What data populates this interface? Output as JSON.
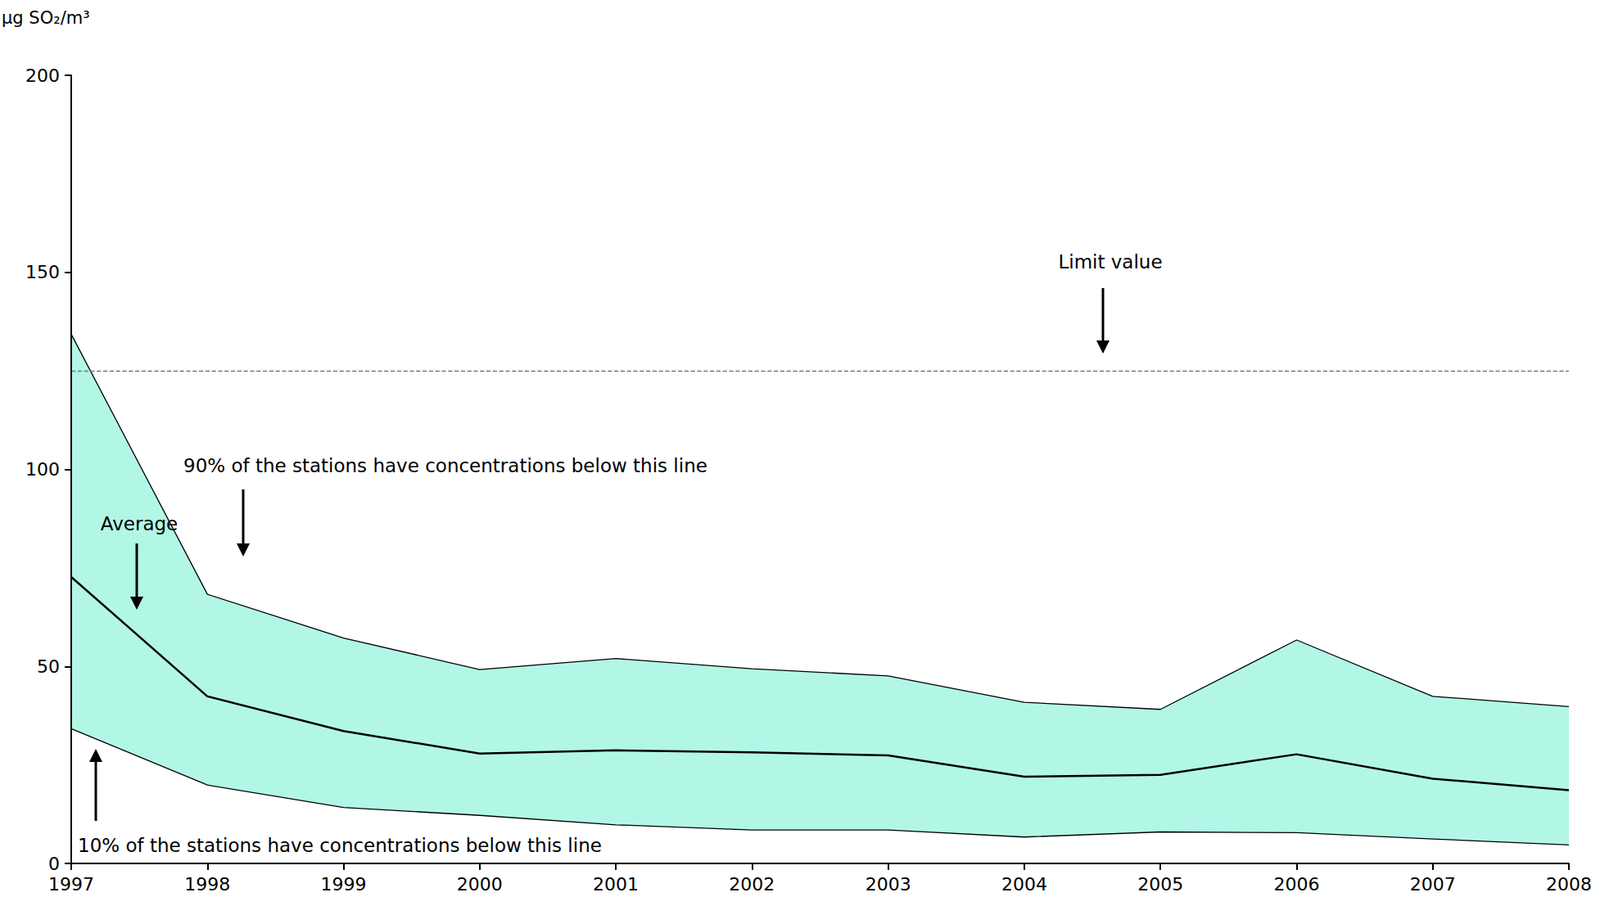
{
  "chart_data": {
    "type": "line",
    "y_label": "µg SO₂/m³",
    "categories": [
      "1997",
      "1998",
      "1999",
      "2000",
      "2001",
      "2002",
      "2003",
      "2004",
      "2005",
      "2006",
      "2007",
      "2008"
    ],
    "series": [
      {
        "name": "90% of the stations have concentrations below this line",
        "values": [
          134.3,
          68.3,
          57.2,
          49.2,
          52.0,
          49.4,
          47.6,
          40.9,
          39.1,
          56.7,
          42.4,
          39.8
        ]
      },
      {
        "name": "Average",
        "values": [
          72.7,
          42.4,
          33.6,
          27.9,
          28.7,
          28.2,
          27.4,
          22.0,
          22.5,
          27.7,
          21.5,
          18.6
        ]
      },
      {
        "name": "10% of the stations have concentrations below this line",
        "values": [
          34.2,
          19.9,
          14.2,
          12.2,
          9.8,
          8.5,
          8.5,
          6.7,
          8.0,
          7.8,
          6.2,
          4.7
        ]
      }
    ],
    "limit": {
      "label": "Limit value",
      "value": 125
    },
    "ylim": [
      0,
      200
    ],
    "yticks": [
      0,
      50,
      100,
      150,
      200
    ],
    "grid": false
  }
}
